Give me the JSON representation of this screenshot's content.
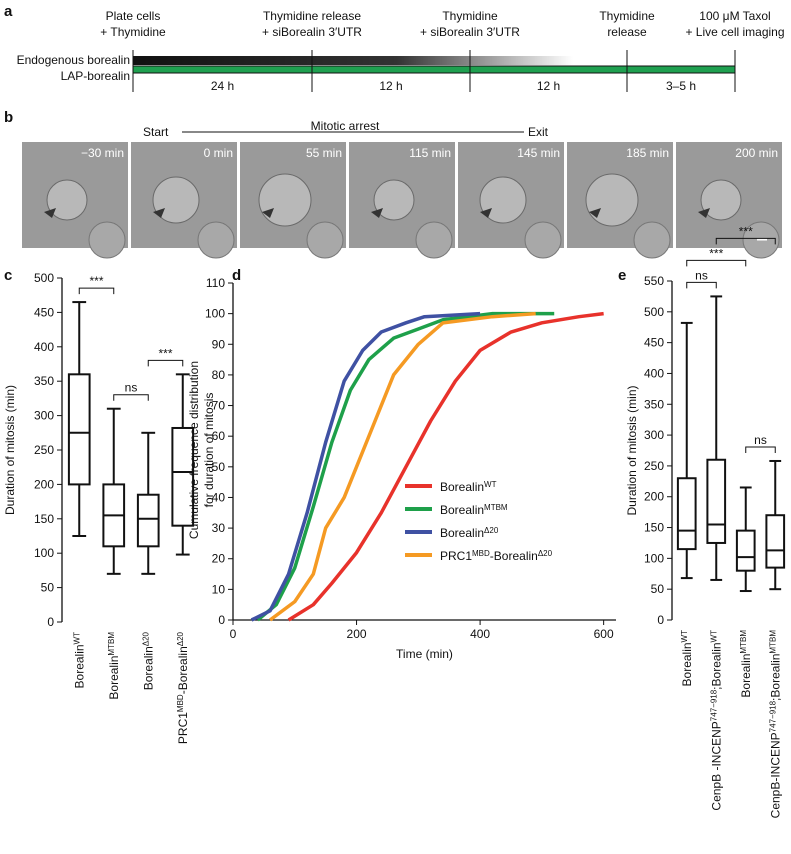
{
  "panel_a": {
    "label": "a",
    "steps": [
      [
        "Plate cells",
        "+ Thymidine"
      ],
      [
        "Thymidine release",
        "+ siBorealin 3′UTR"
      ],
      [
        "Thymidine",
        "+ siBorealin 3′UTR"
      ],
      [
        "Thymidine",
        "release"
      ],
      [
        "100 μM Taxol",
        "+ Live cell imaging"
      ]
    ],
    "rows": [
      "Endogenous borealin",
      "LAP-borealin"
    ],
    "intervals": [
      "24 h",
      "12 h",
      "12 h",
      "3–5 h"
    ]
  },
  "panel_b": {
    "label": "b",
    "start": "Start",
    "phase": "Mitotic arrest",
    "exit": "Exit",
    "frames": [
      "−30 min",
      "0 min",
      "55 min",
      "115 min",
      "145 min",
      "185 min",
      "200 min"
    ]
  },
  "chart_data": [
    {
      "label": "c",
      "type": "box",
      "ylabel": "Duration of mitosis (min)",
      "categories": [
        [
          "Borealin",
          "WT"
        ],
        [
          "Borealin",
          "MTBM"
        ],
        [
          "Borealin",
          "Δ20"
        ],
        [
          "PRC1",
          "MBD",
          "-Borealin",
          "Δ20"
        ]
      ],
      "boxes": [
        {
          "min": 125,
          "q1": 200,
          "median": 275,
          "q3": 360,
          "max": 465
        },
        {
          "min": 70,
          "q1": 110,
          "median": 155,
          "q3": 200,
          "max": 310
        },
        {
          "min": 70,
          "q1": 110,
          "median": 150,
          "q3": 185,
          "max": 275
        },
        {
          "min": 98,
          "q1": 140,
          "median": 218,
          "q3": 282,
          "max": 360
        }
      ],
      "ylim": [
        0,
        500
      ],
      "yticks": [
        0,
        50,
        100,
        150,
        200,
        250,
        300,
        350,
        400,
        450,
        500
      ],
      "annotations": [
        {
          "from": 0,
          "to": 1,
          "text": "***"
        },
        {
          "from": 1,
          "to": 2,
          "text": "ns"
        },
        {
          "from": 2,
          "to": 3,
          "text": "***"
        }
      ]
    },
    {
      "label": "d",
      "type": "line",
      "ylabel": [
        "Cumulative frequence distribution",
        "for duration of mitosis"
      ],
      "xlabel": "Time (min)",
      "xlim": [
        0,
        620
      ],
      "xticks": [
        0,
        200,
        400,
        600
      ],
      "ylim": [
        0,
        110
      ],
      "yticks": [
        0,
        10,
        20,
        30,
        40,
        50,
        60,
        70,
        80,
        90,
        100,
        110
      ],
      "series": [
        {
          "name": [
            "Borealin",
            "WT"
          ],
          "color": "#e8322b",
          "x": [
            90,
            130,
            160,
            200,
            240,
            280,
            320,
            360,
            400,
            450,
            500,
            560,
            600
          ],
          "values": [
            0,
            5,
            12,
            22,
            35,
            50,
            65,
            78,
            88,
            94,
            97,
            99,
            100
          ]
        },
        {
          "name": [
            "Borealin",
            "MTBM"
          ],
          "color": "#1ea04a",
          "x": [
            40,
            70,
            100,
            130,
            160,
            190,
            220,
            260,
            300,
            340,
            420,
            520
          ],
          "values": [
            0,
            5,
            17,
            37,
            58,
            75,
            85,
            92,
            95,
            98,
            100,
            100
          ]
        },
        {
          "name": [
            "Borealin",
            "Δ20"
          ],
          "color": "#3f51a3",
          "x": [
            30,
            60,
            90,
            120,
            150,
            180,
            210,
            240,
            280,
            310,
            400
          ],
          "values": [
            0,
            3,
            15,
            35,
            58,
            78,
            88,
            94,
            97,
            99,
            100
          ]
        },
        {
          "name": [
            "PRC1",
            "MBD",
            "-Borealin",
            "Δ20"
          ],
          "color": "#f59a23",
          "x": [
            60,
            100,
            130,
            150,
            180,
            200,
            230,
            260,
            300,
            340,
            420,
            490
          ],
          "values": [
            0,
            6,
            15,
            30,
            40,
            50,
            65,
            80,
            90,
            97,
            99,
            100
          ]
        }
      ]
    },
    {
      "label": "e",
      "type": "box",
      "ylabel": "Duration of mitosis (min)",
      "categories": [
        [
          "Borealin",
          "WT"
        ],
        [
          "CenpB -INCENP",
          "747−918",
          ";Borealin",
          "WT"
        ],
        [
          "Borealin",
          "MTBM"
        ],
        [
          "CenpB-INCENP",
          "747−918",
          ";Borealin",
          "MTBM"
        ]
      ],
      "boxes": [
        {
          "min": 68,
          "q1": 115,
          "median": 145,
          "q3": 230,
          "max": 482
        },
        {
          "min": 65,
          "q1": 125,
          "median": 155,
          "q3": 260,
          "max": 525
        },
        {
          "min": 47,
          "q1": 80,
          "median": 102,
          "q3": 145,
          "max": 215
        },
        {
          "min": 50,
          "q1": 85,
          "median": 113,
          "q3": 170,
          "max": 258
        }
      ],
      "ylim": [
        0,
        550
      ],
      "yticks": [
        0,
        50,
        100,
        150,
        200,
        250,
        300,
        350,
        400,
        450,
        500,
        550
      ],
      "annotations": [
        {
          "from": 0,
          "to": 1,
          "text": "ns"
        },
        {
          "from": 0,
          "to": 2,
          "text": "***"
        },
        {
          "from": 1,
          "to": 3,
          "text": "***"
        },
        {
          "from": 2,
          "to": 3,
          "text": "ns"
        }
      ]
    }
  ]
}
